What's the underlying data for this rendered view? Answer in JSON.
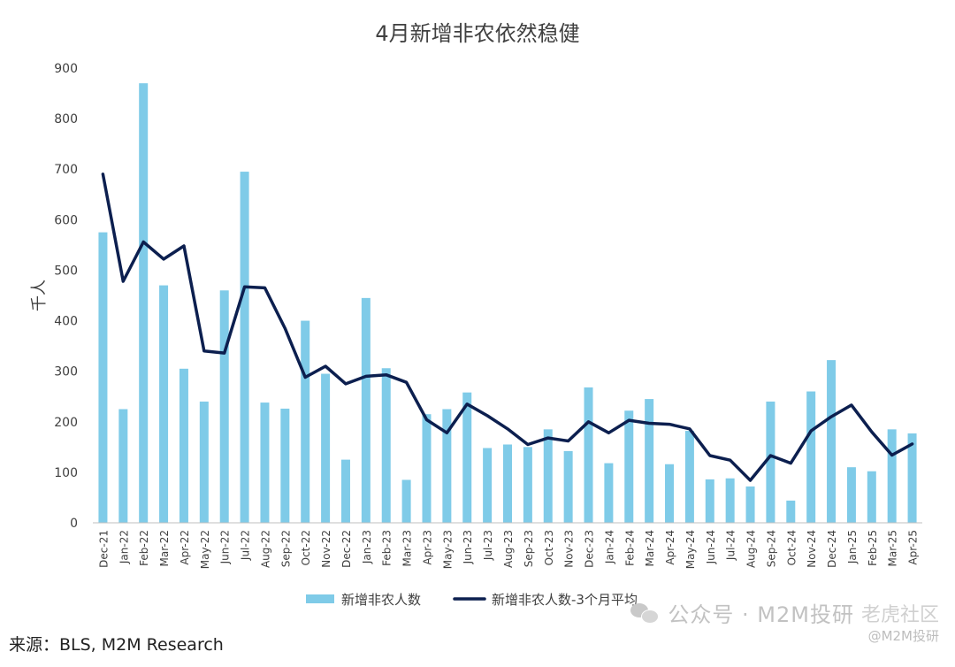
{
  "title": "4月新增非农依然稳健",
  "source": "来源：BLS, M2M Research",
  "watermark": {
    "account": "公众号 · M2M投研",
    "forum": "老虎社区",
    "handle": "@M2M投研"
  },
  "colors": {
    "bar": "#7fcbe8",
    "line": "#0c1f4f",
    "axis": "#bfbfbf",
    "text": "#404040"
  },
  "chart_data": {
    "type": "bar",
    "title": "4月新增非农依然稳健",
    "ylabel": "千人",
    "xlabel": "",
    "ylim": [
      0,
      900
    ],
    "yticks": [
      0,
      100,
      200,
      300,
      400,
      500,
      600,
      700,
      800,
      900
    ],
    "grid": false,
    "legend_position": "bottom",
    "categories": [
      "Dec-21",
      "Jan-22",
      "Feb-22",
      "Mar-22",
      "Apr-22",
      "May-22",
      "Jun-22",
      "Jul-22",
      "Aug-22",
      "Sep-22",
      "Oct-22",
      "Nov-22",
      "Dec-22",
      "Jan-23",
      "Feb-23",
      "Mar-23",
      "Apr-23",
      "May-23",
      "Jun-23",
      "Jul-23",
      "Aug-23",
      "Sep-23",
      "Oct-23",
      "Nov-23",
      "Dec-23",
      "Jan-24",
      "Feb-24",
      "Mar-24",
      "Apr-24",
      "May-24",
      "Jun-24",
      "Jul-24",
      "Aug-24",
      "Sep-24",
      "Oct-24",
      "Nov-24",
      "Dec-24",
      "Jan-25",
      "Feb-25",
      "Mar-25",
      "Apr-25"
    ],
    "series": [
      {
        "name": "新增非农人数",
        "type": "bar",
        "values": [
          575,
          225,
          870,
          470,
          305,
          240,
          460,
          695,
          238,
          226,
          400,
          295,
          125,
          445,
          306,
          85,
          215,
          225,
          258,
          148,
          155,
          150,
          185,
          142,
          268,
          118,
          222,
          245,
          116,
          182,
          86,
          88,
          72,
          240,
          44,
          260,
          322,
          110,
          102,
          185,
          177
        ]
      },
      {
        "name": "新增非农人数-3个月平均",
        "type": "line",
        "values": [
          690,
          478,
          556,
          522,
          548,
          340,
          336,
          467,
          465,
          385,
          288,
          310,
          275,
          290,
          293,
          278,
          204,
          178,
          235,
          212,
          186,
          155,
          168,
          162,
          200,
          178,
          203,
          197,
          195,
          186,
          133,
          124,
          84,
          133,
          118,
          182,
          210,
          233,
          180,
          134,
          156
        ]
      }
    ]
  }
}
